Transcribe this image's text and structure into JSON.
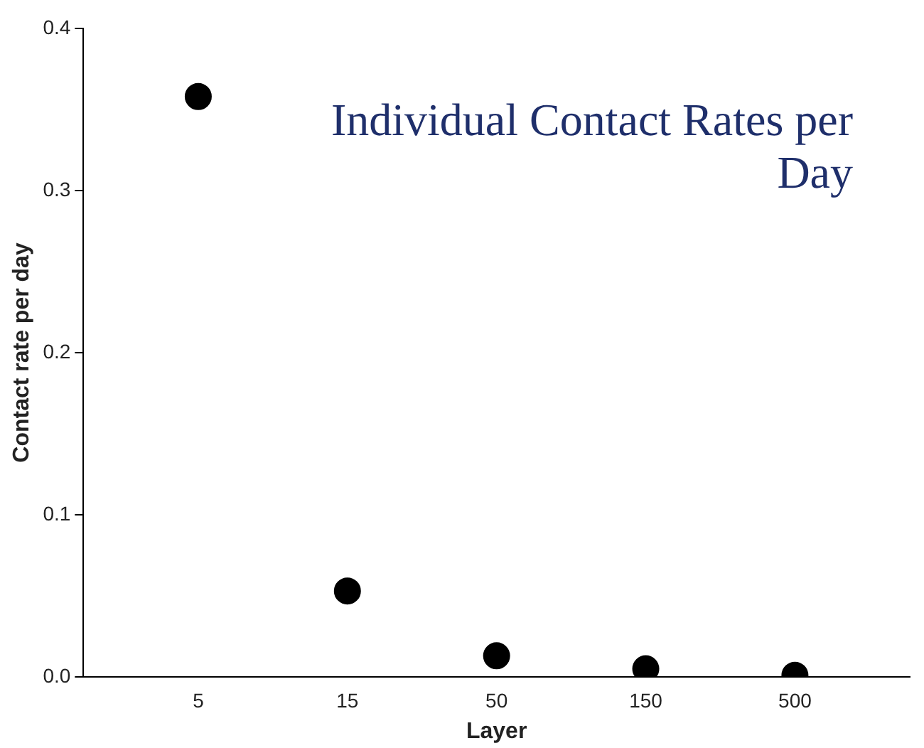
{
  "chart_data": {
    "type": "scatter",
    "title": "Individual Contact Rates per Day",
    "xlabel": "Layer",
    "ylabel": "Contact rate per day",
    "categories": [
      "5",
      "15",
      "50",
      "150",
      "500"
    ],
    "series": [
      {
        "color": "#000000",
        "values": [
          0.358,
          0.053,
          0.013,
          0.005,
          0.001
        ]
      }
    ],
    "ylim": [
      0,
      0.4
    ],
    "yticks": [
      {
        "value": 0,
        "label": "0.0"
      },
      {
        "value": 0.1,
        "label": "0.1"
      },
      {
        "value": 0.2,
        "label": "0.2"
      },
      {
        "value": 0.3,
        "label": "0.3"
      },
      {
        "value": 0.4,
        "label": "0.4"
      }
    ],
    "grid": false,
    "legend": false,
    "marker": "circle"
  }
}
